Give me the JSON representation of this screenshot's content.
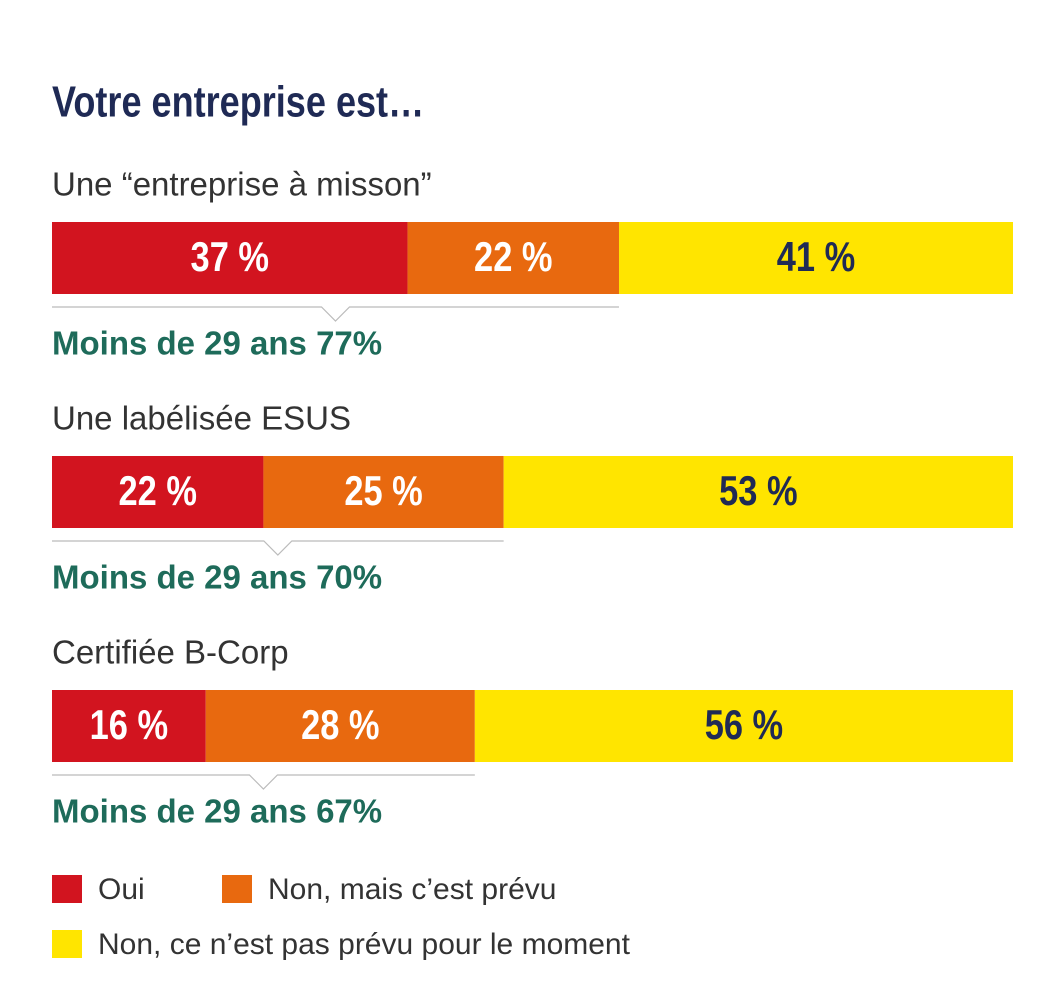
{
  "chart_data": {
    "type": "bar",
    "orientation": "horizontal",
    "stacked": true,
    "title": "Votre entreprise est…",
    "categories": [
      "Une “entreprise à misson”",
      "Une labélisée ESUS",
      "Certifiée B-Corp"
    ],
    "series": [
      {
        "name": "Oui",
        "color": "#d2141f",
        "label_color": "#ffffff",
        "values": [
          37,
          22,
          16
        ],
        "value_labels": [
          "37 %",
          "22 %",
          "16 %"
        ]
      },
      {
        "name": "Non, mais c’est prévu",
        "color": "#e8690f",
        "label_color": "#ffffff",
        "values": [
          22,
          25,
          28
        ],
        "value_labels": [
          "22 %",
          "25 %",
          "28 %"
        ]
      },
      {
        "name": "Non, ce n’est pas prévu pour le moment",
        "color": "#ffe500",
        "label_color": "#1f2a55",
        "values": [
          41,
          53,
          56
        ],
        "value_labels": [
          "41 %",
          "53 %",
          "56 %"
        ]
      }
    ],
    "annotations": [
      "Moins de 29 ans 77%",
      "Moins de 29 ans 70%",
      "Moins de 29 ans 67%"
    ]
  }
}
